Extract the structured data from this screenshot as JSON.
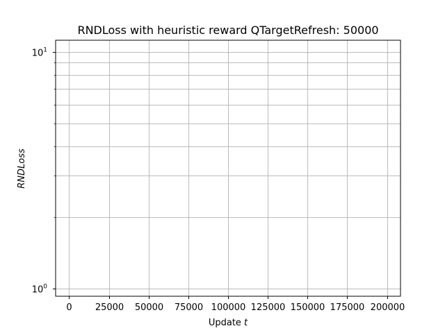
{
  "chart_data": {
    "type": "line",
    "title": "RNDLoss with heuristic reward QTargetRefresh: 50000",
    "xlabel_main": "Update ",
    "xlabel_var": "t",
    "ylabel": "RNDLoss",
    "yscale": "log",
    "xlim": [
      -8500,
      208500
    ],
    "ylim": [
      0.93,
      11.2
    ],
    "grid": true,
    "x_ticks": [
      0,
      25000,
      50000,
      75000,
      100000,
      125000,
      150000,
      175000,
      200000
    ],
    "x_tick_labels": [
      "0",
      "25000",
      "50000",
      "75000",
      "100000",
      "125000",
      "150000",
      "175000",
      "200000"
    ],
    "y_major_ticks": [
      1,
      10
    ],
    "y_major_labels": [
      {
        "base": "10",
        "exp": "0"
      },
      {
        "base": "10",
        "exp": "1"
      }
    ],
    "y_minor_ticks": [
      2,
      3,
      4,
      5,
      6,
      7,
      8,
      9
    ],
    "series": []
  }
}
